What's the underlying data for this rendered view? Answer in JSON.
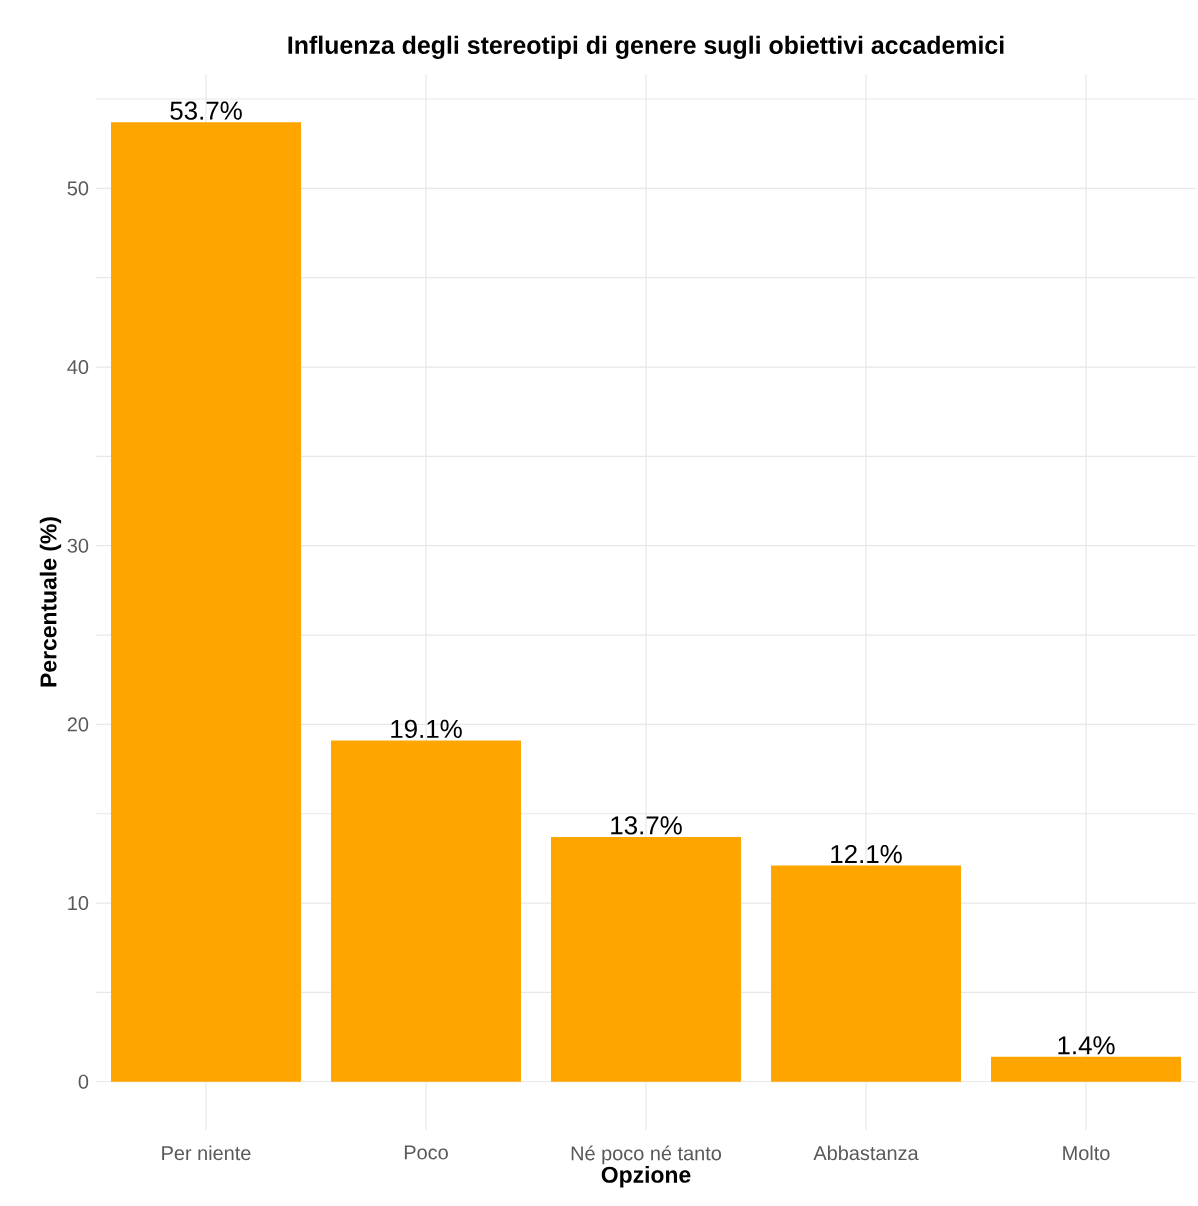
{
  "chart_data": {
    "type": "bar",
    "title": "Influenza degli stereotipi di genere sugli obiettivi accademici",
    "xlabel": "Opzione",
    "ylabel": "Percentuale (%)",
    "categories": [
      "Per niente",
      "Poco",
      "Né poco né tanto",
      "Abbastanza",
      "Molto"
    ],
    "values": [
      53.7,
      19.1,
      13.7,
      12.1,
      1.4
    ],
    "value_labels": [
      "53.7%",
      "19.1%",
      "13.7%",
      "12.1%",
      "1.4%"
    ],
    "color": "#ffa500",
    "ylim": [
      -2.7,
      56.4
    ],
    "yticks": [
      0,
      {
        "value": 5,
        "label": null
      },
      10,
      {
        "value": 15,
        "label": null
      },
      20,
      {
        "value": 25,
        "label": null
      },
      30,
      {
        "value": 35,
        "label": null
      },
      40,
      {
        "value": 45,
        "label": null
      },
      50,
      {
        "value": 55,
        "label": null
      }
    ],
    "grid": true
  }
}
